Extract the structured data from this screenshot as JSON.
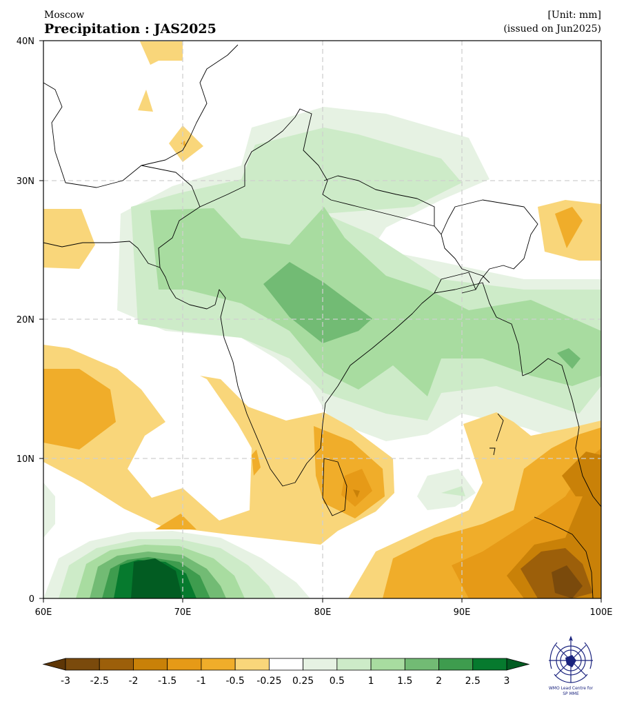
{
  "header": {
    "center_name": "Moscow",
    "title": "Precipitation : JAS2025",
    "unit": "[Unit: mm]",
    "issued": "(issued on Jun2025)"
  },
  "map": {
    "lon_range": [
      60,
      100
    ],
    "lat_range": [
      0,
      40
    ],
    "lon_ticks": [
      "60E",
      "70E",
      "80E",
      "90E",
      "100E"
    ],
    "lat_ticks": [
      "0",
      "10N",
      "20N",
      "30N",
      "40N"
    ],
    "grid": true
  },
  "colorbar": {
    "levels": [
      "-3",
      "-2.5",
      "-2",
      "-1.5",
      "-1",
      "-0.5",
      "-0.25",
      "0.25",
      "0.5",
      "1",
      "1.5",
      "2",
      "2.5",
      "3"
    ],
    "colors": [
      "#7a4a0c",
      "#9c5f0a",
      "#c98108",
      "#e69a17",
      "#f0ad2a",
      "#f9d67a",
      "#ffffff",
      "#e6f2e3",
      "#cdebc8",
      "#a8dca0",
      "#72bb74",
      "#3e9c4e",
      "#067a2e"
    ],
    "under_color": "#5e3606",
    "over_color": "#025c22"
  },
  "logo": {
    "name": "WMO Lead Centre for SP MME",
    "text_line1": "WMO Lead Centre for",
    "text_line2": "SP MME"
  }
}
